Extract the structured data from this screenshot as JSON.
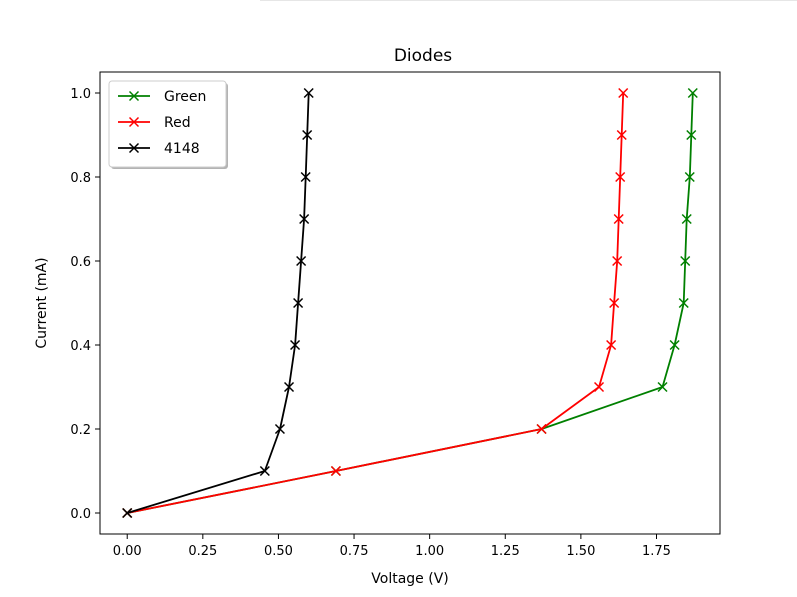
{
  "chart_data": {
    "type": "line",
    "title": "Diodes",
    "xlabel": "Voltage (V)",
    "ylabel": "Current (mA)",
    "xlim": [
      -0.09,
      1.96
    ],
    "ylim": [
      -0.05,
      1.05
    ],
    "xticks": [
      "0.00",
      "0.25",
      "0.50",
      "0.75",
      "1.00",
      "1.25",
      "1.50",
      "1.75"
    ],
    "yticks": [
      "0.0",
      "0.2",
      "0.4",
      "0.6",
      "0.8",
      "1.0"
    ],
    "grid": false,
    "legend": "top-left",
    "marker": "x",
    "series": [
      {
        "name": "Green",
        "color": "#008000",
        "x": [
          0.0,
          0.69,
          1.37,
          1.77,
          1.81,
          1.84,
          1.845,
          1.85,
          1.86,
          1.865,
          1.87
        ],
        "y": [
          0.0,
          0.1,
          0.2,
          0.3,
          0.4,
          0.5,
          0.6,
          0.7,
          0.8,
          0.9,
          1.0
        ]
      },
      {
        "name": "Red",
        "color": "#ff0000",
        "x": [
          0.0,
          0.69,
          1.37,
          1.56,
          1.6,
          1.61,
          1.62,
          1.625,
          1.63,
          1.635,
          1.64
        ],
        "y": [
          0.0,
          0.1,
          0.2,
          0.3,
          0.4,
          0.5,
          0.6,
          0.7,
          0.8,
          0.9,
          1.0
        ]
      },
      {
        "name": "4148",
        "color": "#000000",
        "x": [
          0.0,
          0.455,
          0.505,
          0.535,
          0.555,
          0.565,
          0.575,
          0.585,
          0.59,
          0.595,
          0.6
        ],
        "y": [
          0.0,
          0.1,
          0.2,
          0.3,
          0.4,
          0.5,
          0.6,
          0.7,
          0.8,
          0.9,
          1.0
        ]
      }
    ]
  }
}
